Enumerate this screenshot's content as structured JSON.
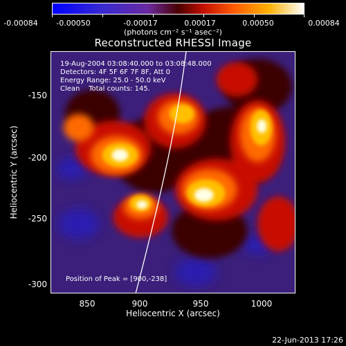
{
  "colorbar": {
    "tick_labels": [
      "-0.00084",
      "-0.00050",
      "-0.00017",
      "0.00017",
      "0.00050",
      "0.00084"
    ],
    "units_label": "(photons cm⁻² s⁻¹ asec⁻²)"
  },
  "title": "Reconstructed RHESSI Image",
  "overlay": {
    "line1": "19-Aug-2004 03:08:40.000 to 03:08:48.000",
    "line2": "Detectors: 4F 5F 6F 7F 8F, Att 0",
    "line3": "Energy Range: 25.0 - 50.0 keV",
    "line4": "Clean    Total counts: 145.",
    "peak": "Position of Peak = [900,-238]"
  },
  "axes": {
    "x_ticks": [
      "850",
      "900",
      "950",
      "1000"
    ],
    "y_ticks": [
      "-150",
      "-200",
      "-250",
      "-300"
    ],
    "x_title": "Heliocentric X (arcsec)",
    "y_title": "Heliocentric Y (arcsec)"
  },
  "timestamp": "22-Jun-2013 17:26"
}
